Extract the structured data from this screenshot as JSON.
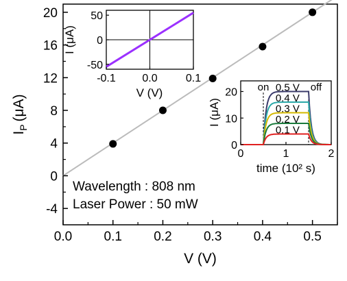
{
  "chart_data": [
    {
      "type": "scatter",
      "xlabel": "V (V)",
      "ylabel_main": "I",
      "ylabel_sub": "P",
      "ylabel_unit": "(μA)",
      "xlim": [
        0.0,
        0.55
      ],
      "ylim": [
        -6,
        21
      ],
      "xticks": [
        "0.0",
        "0.1",
        "0.2",
        "0.3",
        "0.4",
        "0.5"
      ],
      "xtick_values": [
        0.0,
        0.1,
        0.2,
        0.3,
        0.4,
        0.5
      ],
      "yticks": [
        "-4",
        "0",
        "4",
        "8",
        "12",
        "16",
        "20"
      ],
      "ytick_values": [
        -4,
        0,
        4,
        8,
        12,
        16,
        20
      ],
      "series": [
        {
          "x": [
            0.1,
            0.2,
            0.3,
            0.4,
            0.5
          ],
          "y": [
            3.9,
            8.0,
            11.9,
            15.8,
            20.0
          ],
          "color": "#000000"
        }
      ],
      "fit_line": {
        "x": [
          0.0,
          0.55
        ],
        "y": [
          0.0,
          22.0
        ],
        "color": "#bbbbbb"
      },
      "annotations": [
        "Wavelength : 808 nm",
        "Laser Power : 50 mW"
      ]
    },
    {
      "type": "line",
      "xlabel": "V (V)",
      "ylabel": "I (μA)",
      "xlim": [
        -0.1,
        0.1
      ],
      "ylim": [
        -60,
        60
      ],
      "xticks": [
        "-0.1",
        "0.0",
        "0.1"
      ],
      "xtick_values": [
        -0.1,
        0.0,
        0.1
      ],
      "yticks": [
        "-50",
        "0",
        "50"
      ],
      "ytick_values": [
        -50,
        0,
        50
      ],
      "series": [
        {
          "x": [
            -0.1,
            0.1
          ],
          "y": [
            -55,
            55
          ],
          "color": "#9b30ff"
        }
      ]
    },
    {
      "type": "line",
      "xlabel": "time (10² s)",
      "ylabel": "I (μA)",
      "xlim": [
        0,
        2
      ],
      "ylim": [
        0,
        24
      ],
      "xticks": [
        "0",
        "1",
        "2"
      ],
      "xtick_values": [
        0,
        1,
        2
      ],
      "yticks": [
        "0",
        "10",
        "20"
      ],
      "ytick_values": [
        0,
        10,
        20
      ],
      "annotations": [
        "on",
        "off"
      ],
      "on_time": 0.5,
      "off_time": 1.5,
      "series": [
        {
          "name": "0.5 V",
          "level": 20,
          "color": "#3b3b6b"
        },
        {
          "name": "0.4 V",
          "level": 16,
          "color": "#2aa8a8"
        },
        {
          "name": "0.3 V",
          "level": 12,
          "color": "#d4b800"
        },
        {
          "name": "0.2 V",
          "level": 8,
          "color": "#1a7a3c"
        },
        {
          "name": "0.1 V",
          "level": 4,
          "color": "#e02020"
        }
      ]
    }
  ]
}
